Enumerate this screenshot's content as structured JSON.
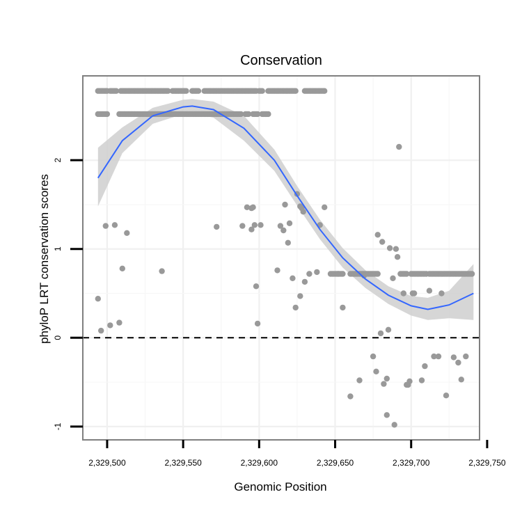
{
  "chart_data": {
    "type": "scatter",
    "title": "Conservation",
    "xlabel": "Genomic Position",
    "ylabel": "phyloP LRT conservation scores",
    "xlim": [
      2329484,
      2329745
    ],
    "ylim": [
      -1.15,
      2.95
    ],
    "x_ticks": [
      2329500,
      2329550,
      2329600,
      2329650,
      2329700,
      2329750
    ],
    "x_tick_labels": [
      "2,329,500",
      "2,329,550",
      "2,329,600",
      "2,329,650",
      "2,329,700",
      "2,329,750"
    ],
    "y_ticks": [
      -1,
      0,
      1,
      2
    ],
    "y_tick_labels": [
      "-1",
      "0",
      "1",
      "2"
    ],
    "reference_line": {
      "y": 0,
      "style": "dashed"
    },
    "grid": true,
    "colors": {
      "points": "#999999",
      "smooth": "#3366ff",
      "ribbon": "#cfcfcf"
    },
    "points_high_band": {
      "y": 2.78,
      "x_ranges": [
        [
          2329494,
          2329500
        ],
        [
          2329502,
          2329506
        ],
        [
          2329509,
          2329540
        ],
        [
          2329543,
          2329552
        ],
        [
          2329556,
          2329560
        ],
        [
          2329564,
          2329598
        ],
        [
          2329600,
          2329602
        ],
        [
          2329606,
          2329624
        ],
        [
          2329630,
          2329643
        ]
      ]
    },
    "points_mid_band": {
      "y": 2.52,
      "x_ranges": [
        [
          2329494,
          2329500
        ],
        [
          2329508,
          2329588
        ],
        [
          2329591,
          2329593
        ],
        [
          2329596,
          2329599
        ],
        [
          2329602,
          2329606
        ]
      ]
    },
    "points_low_band": {
      "y": 0.72,
      "x_ranges": [
        [
          2329647,
          2329655
        ],
        [
          2329660,
          2329678
        ],
        [
          2329693,
          2329697
        ],
        [
          2329700,
          2329710
        ],
        [
          2329712,
          2329740
        ]
      ]
    },
    "series": [
      {
        "name": "points",
        "x": [
          2329494,
          2329496,
          2329499,
          2329502,
          2329505,
          2329508,
          2329510,
          2329513,
          2329536,
          2329592,
          2329589,
          2329595,
          2329595,
          2329597,
          2329598,
          2329599,
          2329601,
          2329612,
          2329614,
          2329616,
          2329617,
          2329619,
          2329620,
          2329622,
          2329624,
          2329627,
          2329628,
          2329627,
          2329629,
          2329630,
          2329633,
          2329638,
          2329640,
          2329643,
          2329596,
          2329625,
          2329572,
          2329652,
          2329655,
          2329660,
          2329666,
          2329669,
          2329675,
          2329677,
          2329678,
          2329680,
          2329681,
          2329682,
          2329684,
          2329686,
          2329685,
          2329688,
          2329690,
          2329691,
          2329692,
          2329684,
          2329689,
          2329695,
          2329698,
          2329699,
          2329701,
          2329697,
          2329702,
          2329707,
          2329709,
          2329712,
          2329715,
          2329718,
          2329723,
          2329731,
          2329736,
          2329728,
          2329733,
          2329720
        ],
        "y": [
          0.44,
          0.08,
          1.26,
          0.14,
          1.27,
          0.17,
          0.78,
          1.18,
          0.75,
          1.47,
          1.26,
          1.46,
          1.22,
          1.27,
          0.58,
          0.16,
          1.27,
          0.76,
          1.26,
          1.21,
          1.5,
          1.07,
          1.29,
          0.67,
          0.34,
          0.47,
          1.46,
          1.48,
          1.42,
          0.63,
          0.72,
          0.74,
          1.27,
          1.47,
          1.47,
          1.62,
          1.25,
          0.72,
          0.34,
          -0.66,
          -0.48,
          0.7,
          -0.21,
          -0.38,
          1.16,
          0.05,
          1.08,
          -0.52,
          -0.46,
          1.01,
          0.09,
          0.67,
          1.0,
          0.91,
          2.15,
          -0.87,
          -0.98,
          0.5,
          -0.53,
          -0.49,
          0.5,
          -0.53,
          0.5,
          -0.48,
          -0.32,
          0.53,
          -0.21,
          -0.21,
          -0.65,
          -0.28,
          -0.21,
          -0.22,
          -0.47,
          0.5
        ]
      },
      {
        "name": "loess fit",
        "x": [
          2329494,
          2329510,
          2329530,
          2329550,
          2329556,
          2329570,
          2329590,
          2329610,
          2329625,
          2329640,
          2329655,
          2329670,
          2329685,
          2329700,
          2329711,
          2329725,
          2329741
        ],
        "y": [
          1.8,
          2.22,
          2.5,
          2.6,
          2.61,
          2.57,
          2.36,
          2.0,
          1.6,
          1.22,
          0.9,
          0.66,
          0.48,
          0.36,
          0.32,
          0.37,
          0.5
        ]
      },
      {
        "name": "95% CI upper",
        "x": [
          2329494,
          2329510,
          2329530,
          2329550,
          2329556,
          2329570,
          2329590,
          2329610,
          2329625,
          2329640,
          2329655,
          2329670,
          2329685,
          2329700,
          2329711,
          2329725,
          2329741
        ],
        "y": [
          2.14,
          2.37,
          2.59,
          2.68,
          2.69,
          2.66,
          2.5,
          2.12,
          1.71,
          1.33,
          1.01,
          0.76,
          0.58,
          0.47,
          0.45,
          0.53,
          0.83
        ]
      },
      {
        "name": "95% CI lower",
        "x": [
          2329494,
          2329510,
          2329530,
          2329550,
          2329556,
          2329570,
          2329590,
          2329610,
          2329625,
          2329640,
          2329655,
          2329670,
          2329685,
          2329700,
          2329711,
          2329725,
          2329741
        ],
        "y": [
          1.48,
          2.08,
          2.41,
          2.52,
          2.53,
          2.48,
          2.22,
          1.88,
          1.49,
          1.11,
          0.79,
          0.56,
          0.38,
          0.25,
          0.2,
          0.22,
          0.2
        ]
      }
    ]
  }
}
